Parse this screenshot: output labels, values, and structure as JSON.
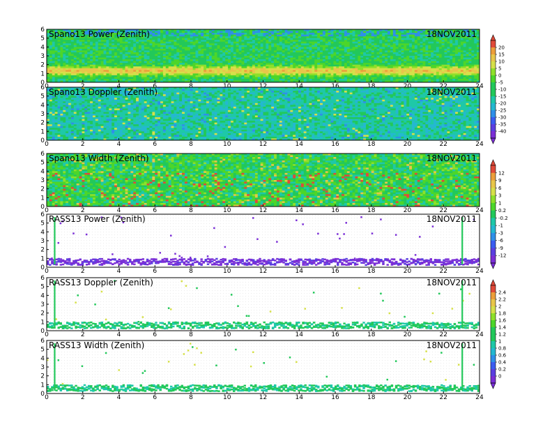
{
  "chart_data": [
    {
      "type": "heatmap",
      "title": "Spano13 Power (Zenith)",
      "date": "18NOV2011",
      "x_ticks": [
        "0",
        "2",
        "4",
        "6",
        "8",
        "10",
        "12",
        "14",
        "16",
        "18",
        "20",
        "22",
        "24"
      ],
      "y_ticks": [
        "0",
        "1",
        "2",
        "3",
        "4",
        "5",
        "6"
      ],
      "xlim": [
        0,
        24
      ],
      "ylim": [
        0,
        6
      ],
      "colorbar_group": "cb_a"
    },
    {
      "type": "heatmap",
      "title": "Spano13 Doppler (Zenith)",
      "date": "18NOV2011",
      "x_ticks": [
        "0",
        "2",
        "4",
        "6",
        "8",
        "10",
        "12",
        "14",
        "16",
        "18",
        "20",
        "22",
        "24"
      ],
      "y_ticks": [
        "0",
        "1",
        "2",
        "3",
        "4",
        "5",
        "6"
      ],
      "xlim": [
        0,
        24
      ],
      "ylim": [
        0,
        6
      ],
      "colorbar_group": "cb_a"
    },
    {
      "type": "heatmap",
      "title": "Spano13 Width (Zenith)",
      "date": "18NOV2011",
      "x_ticks": [
        "0",
        "2",
        "4",
        "6",
        "8",
        "10",
        "12",
        "14",
        "16",
        "18",
        "20",
        "22",
        "24"
      ],
      "y_ticks": [
        "0",
        "1",
        "2",
        "3",
        "4",
        "5",
        "6"
      ],
      "xlim": [
        0,
        24
      ],
      "ylim": [
        0,
        6
      ],
      "colorbar_group": "cb_b"
    },
    {
      "type": "heatmap",
      "title": "RASS13 Power (Zenith)",
      "date": "18NOV2011",
      "x_ticks": [
        "0",
        "2",
        "4",
        "6",
        "8",
        "10",
        "12",
        "14",
        "16",
        "18",
        "20",
        "22",
        "24"
      ],
      "y_ticks": [
        "0",
        "1",
        "2",
        "3",
        "4",
        "5",
        "6"
      ],
      "xlim": [
        0,
        24
      ],
      "ylim": [
        0,
        6
      ],
      "colorbar_group": "cb_b"
    },
    {
      "type": "heatmap",
      "title": "RASS13 Doppler (Zenith)",
      "date": "18NOV2011",
      "x_ticks": [
        "0",
        "2",
        "4",
        "6",
        "8",
        "10",
        "12",
        "14",
        "16",
        "18",
        "20",
        "22",
        "24"
      ],
      "y_ticks": [
        "0",
        "1",
        "2",
        "3",
        "4",
        "5",
        "6"
      ],
      "xlim": [
        0,
        24
      ],
      "ylim": [
        0,
        6
      ],
      "colorbar_group": "cb_c"
    },
    {
      "type": "heatmap",
      "title": "RASS13 Width (Zenith)",
      "date": "18NOV2011",
      "x_ticks": [
        "0",
        "2",
        "4",
        "6",
        "8",
        "10",
        "12",
        "14",
        "16",
        "18",
        "20",
        "22",
        "24"
      ],
      "y_ticks": [
        "0",
        "1",
        "2",
        "3",
        "4",
        "5",
        "6"
      ],
      "xlim": [
        0,
        24
      ],
      "ylim": [
        0,
        6
      ],
      "colorbar_group": "cb_c"
    }
  ],
  "colorbars": {
    "cb_a": {
      "labels": [
        "20",
        "15",
        "10",
        "5",
        "0",
        "-5",
        "-10",
        "-15",
        "-20",
        "-25",
        "-30",
        "-35",
        "-40"
      ]
    },
    "cb_b": {
      "labels": [
        "12",
        "9",
        "6",
        "3",
        "1",
        "0.2",
        "-0.2",
        "-1",
        "-3",
        "-6",
        "-9",
        "-12"
      ]
    },
    "cb_c": {
      "labels": [
        "2.4",
        "2.2",
        "2",
        "1.8",
        "1.6",
        "1.4",
        "1.2",
        "1",
        "0.8",
        "0.6",
        "0.4",
        "0.2",
        "0"
      ]
    }
  },
  "palette": [
    "#7b2fd6",
    "#5b3fe0",
    "#3b5cf0",
    "#2f8fe8",
    "#24b8d0",
    "#1ec8a8",
    "#22c85a",
    "#4cd62a",
    "#8ee02a",
    "#d6e04a",
    "#e8c64a",
    "#ec9e3a",
    "#e04a3a"
  ],
  "background": "#5fcfb0"
}
